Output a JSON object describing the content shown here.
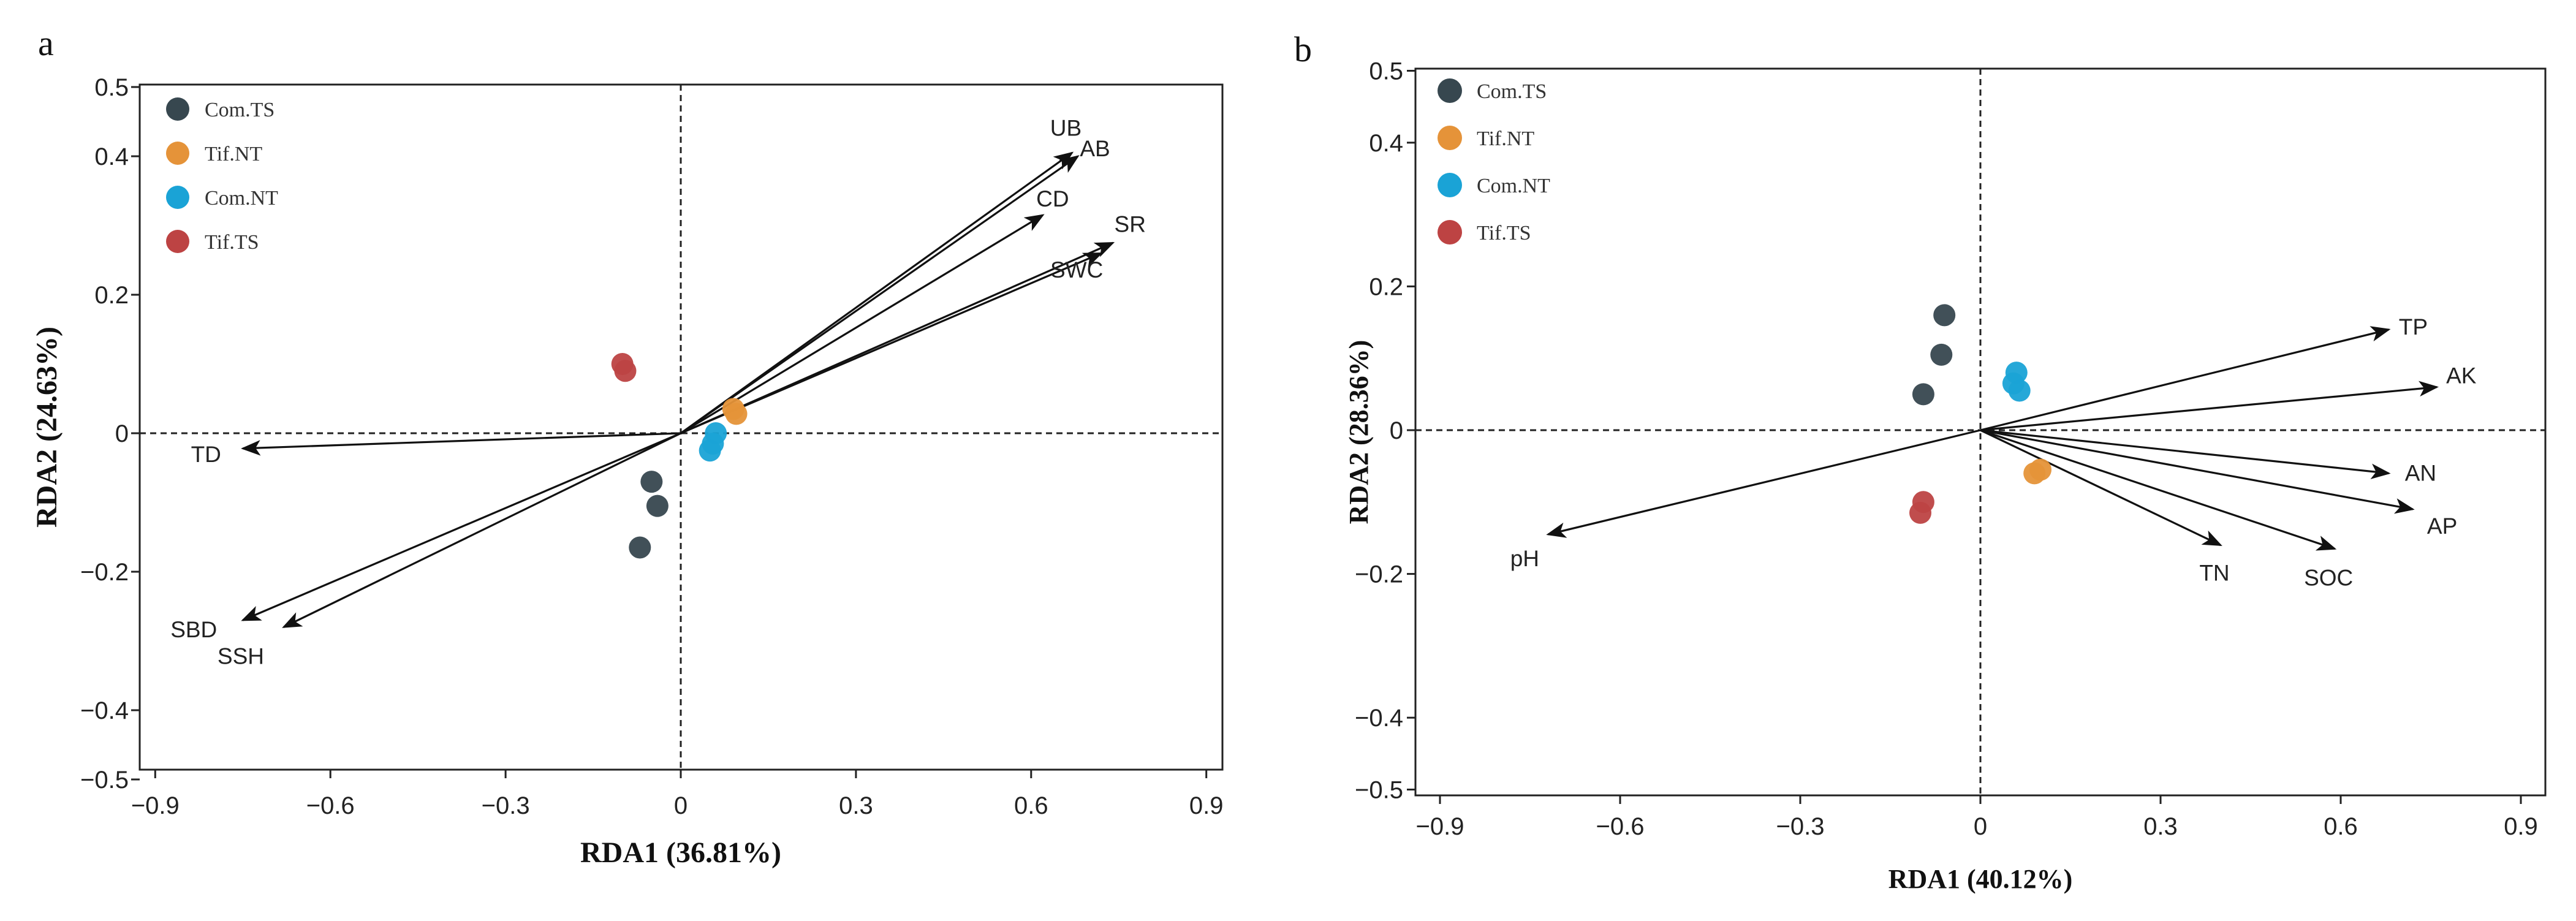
{
  "colors": {
    "Com.TS": "#37474f",
    "Tif.NT": "#e59339",
    "Com.NT": "#1aa3d6",
    "Tif.TS": "#bd4343",
    "arrow": "#111111",
    "axis": "#222222"
  },
  "chart_data": [
    {
      "panel": "a",
      "type": "scatter",
      "xlabel": "RDA1 (36.81%)",
      "ylabel": "RDA2 (24.63%)",
      "xlim": [
        -0.95,
        0.95
      ],
      "ylim": [
        -0.5,
        0.5
      ],
      "xticks": [
        -0.9,
        -0.6,
        -0.3,
        0,
        0.3,
        0.6,
        0.9
      ],
      "xtick_labels": [
        "−0.9",
        "−0.6",
        "−0.3",
        "0",
        "0.3",
        "0.6",
        "0.9"
      ],
      "yticks": [
        0.5,
        0.4,
        0.2,
        0,
        -0.2,
        -0.4,
        -0.5
      ],
      "ytick_labels": [
        "0.5",
        "0.4",
        "0.2",
        "0",
        "−0.2",
        "−0.4",
        "−0.5"
      ],
      "legend": [
        "Com.TS",
        "Tif.NT",
        "Com.NT",
        "Tif.TS"
      ],
      "series": [
        {
          "name": "Com.TS",
          "points": [
            [
              -0.05,
              -0.07
            ],
            [
              -0.04,
              -0.105
            ],
            [
              -0.07,
              -0.165
            ]
          ]
        },
        {
          "name": "Tif.NT",
          "points": [
            [
              0.09,
              0.035
            ],
            [
              0.095,
              0.028
            ]
          ]
        },
        {
          "name": "Com.NT",
          "points": [
            [
              0.06,
              0.0
            ],
            [
              0.055,
              -0.015
            ],
            [
              0.05,
              -0.025
            ]
          ]
        },
        {
          "name": "Tif.TS",
          "points": [
            [
              -0.1,
              0.1
            ],
            [
              -0.095,
              0.09
            ]
          ]
        }
      ],
      "vectors": [
        {
          "name": "UB",
          "x": 0.67,
          "y": 0.405
        },
        {
          "name": "AB",
          "x": 0.68,
          "y": 0.4
        },
        {
          "name": "CD",
          "x": 0.62,
          "y": 0.315
        },
        {
          "name": "SR",
          "x": 0.74,
          "y": 0.275
        },
        {
          "name": "SWC",
          "x": 0.72,
          "y": 0.26
        },
        {
          "name": "TD",
          "x": -0.75,
          "y": -0.022
        },
        {
          "name": "SBD",
          "x": -0.75,
          "y": -0.27
        },
        {
          "name": "SSH",
          "x": -0.68,
          "y": -0.28
        }
      ]
    },
    {
      "panel": "b",
      "type": "scatter",
      "xlabel": "RDA1 (40.12%)",
      "ylabel": "RDA2 (28.36%)",
      "xlim": [
        -0.95,
        0.95
      ],
      "ylim": [
        -0.5,
        0.5
      ],
      "xticks": [
        -0.9,
        -0.6,
        -0.3,
        0,
        0.3,
        0.6,
        0.9
      ],
      "xtick_labels": [
        "−0.9",
        "−0.6",
        "−0.3",
        "0",
        "0.3",
        "0.6",
        "0.9"
      ],
      "yticks": [
        0.5,
        0.4,
        0.2,
        0,
        -0.2,
        -0.4,
        -0.5
      ],
      "ytick_labels": [
        "0.5",
        "0.4",
        "0.2",
        "0",
        "−0.2",
        "−0.4",
        "−0.5"
      ],
      "legend": [
        "Com.TS",
        "Tif.NT",
        "Com.NT",
        "Tif.TS"
      ],
      "series": [
        {
          "name": "Com.TS",
          "points": [
            [
              -0.06,
              0.16
            ],
            [
              -0.065,
              0.105
            ],
            [
              -0.095,
              0.05
            ]
          ]
        },
        {
          "name": "Tif.NT",
          "points": [
            [
              0.09,
              -0.06
            ],
            [
              0.1,
              -0.055
            ]
          ]
        },
        {
          "name": "Com.NT",
          "points": [
            [
              0.06,
              0.08
            ],
            [
              0.055,
              0.065
            ],
            [
              0.065,
              0.055
            ]
          ]
        },
        {
          "name": "Tif.TS",
          "points": [
            [
              -0.095,
              -0.1
            ],
            [
              -0.1,
              -0.115
            ]
          ]
        }
      ],
      "vectors": [
        {
          "name": "TP",
          "x": 0.68,
          "y": 0.14
        },
        {
          "name": "AK",
          "x": 0.76,
          "y": 0.06
        },
        {
          "name": "AN",
          "x": 0.68,
          "y": -0.06
        },
        {
          "name": "AP",
          "x": 0.72,
          "y": -0.11
        },
        {
          "name": "TN",
          "x": 0.4,
          "y": -0.16
        },
        {
          "name": "SOC",
          "x": 0.59,
          "y": -0.165
        },
        {
          "name": "pH",
          "x": -0.72,
          "y": -0.145
        }
      ]
    }
  ]
}
